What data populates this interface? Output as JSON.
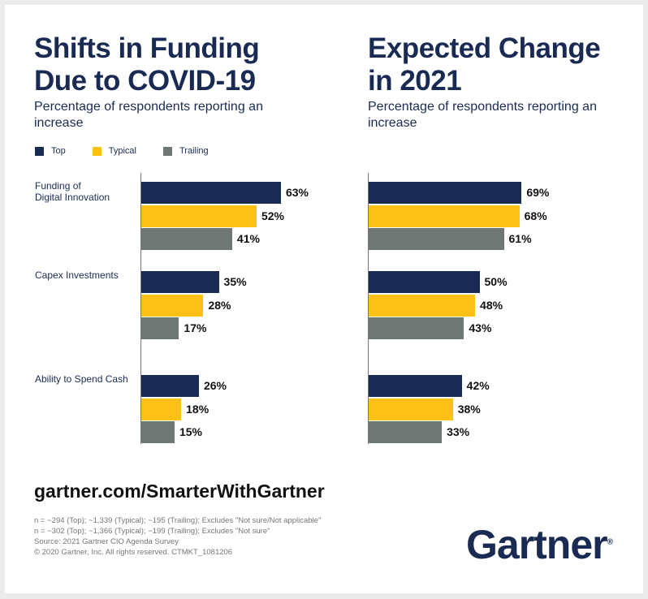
{
  "colors": {
    "Top": "#1a2b53",
    "Typical": "#fcc016",
    "Trailing": "#6f7775"
  },
  "legend": [
    "Top",
    "Typical",
    "Trailing"
  ],
  "chart_data": [
    {
      "type": "bar",
      "title": "Shifts in Funding Due to COVID-19",
      "subtitle": "Percentage of respondents reporting an increase",
      "categories": [
        "Funding of Digital Innovation",
        "Capex Investments",
        "Ability to Spend Cash"
      ],
      "series": [
        {
          "name": "Top",
          "values": [
            63,
            35,
            26
          ]
        },
        {
          "name": "Typical",
          "values": [
            52,
            28,
            18
          ]
        },
        {
          "name": "Trailing",
          "values": [
            41,
            17,
            15
          ]
        }
      ],
      "orientation": "horizontal",
      "xlim": [
        0,
        100
      ],
      "grid": false,
      "legend": "top-left"
    },
    {
      "type": "bar",
      "title": "Expected Change in 2021",
      "subtitle": "Percentage of respondents reporting an increase",
      "categories": [
        "Funding of Digital Innovation",
        "Capex Investments",
        "Ability to Spend Cash"
      ],
      "series": [
        {
          "name": "Top",
          "values": [
            69,
            50,
            42
          ]
        },
        {
          "name": "Typical",
          "values": [
            68,
            48,
            38
          ]
        },
        {
          "name": "Trailing",
          "values": [
            61,
            43,
            33
          ]
        }
      ],
      "orientation": "horizontal",
      "xlim": [
        0,
        100
      ],
      "grid": false
    }
  ],
  "cat_lines": [
    [
      "Funding of",
      "Digital Innovation"
    ],
    [
      "Capex Investments"
    ],
    [
      "Ability to Spend Cash"
    ]
  ],
  "url": "gartner.com/SmarterWithGartner",
  "notes": [
    "n = ~294 (Top); ~1,339 (Typical); ~195 (Trailing); Excludes \"Not sure/Not applicable\"",
    "n = ~302 (Top); ~1,366 (Typical); ~199 (Trailing); Excludes \"Not sure\"",
    "Source: 2021 Gartner CIO Agenda Survey",
    "© 2020 Gartner, Inc. All rights reserved. CTMKT_1081206"
  ],
  "logo": "Gartner"
}
